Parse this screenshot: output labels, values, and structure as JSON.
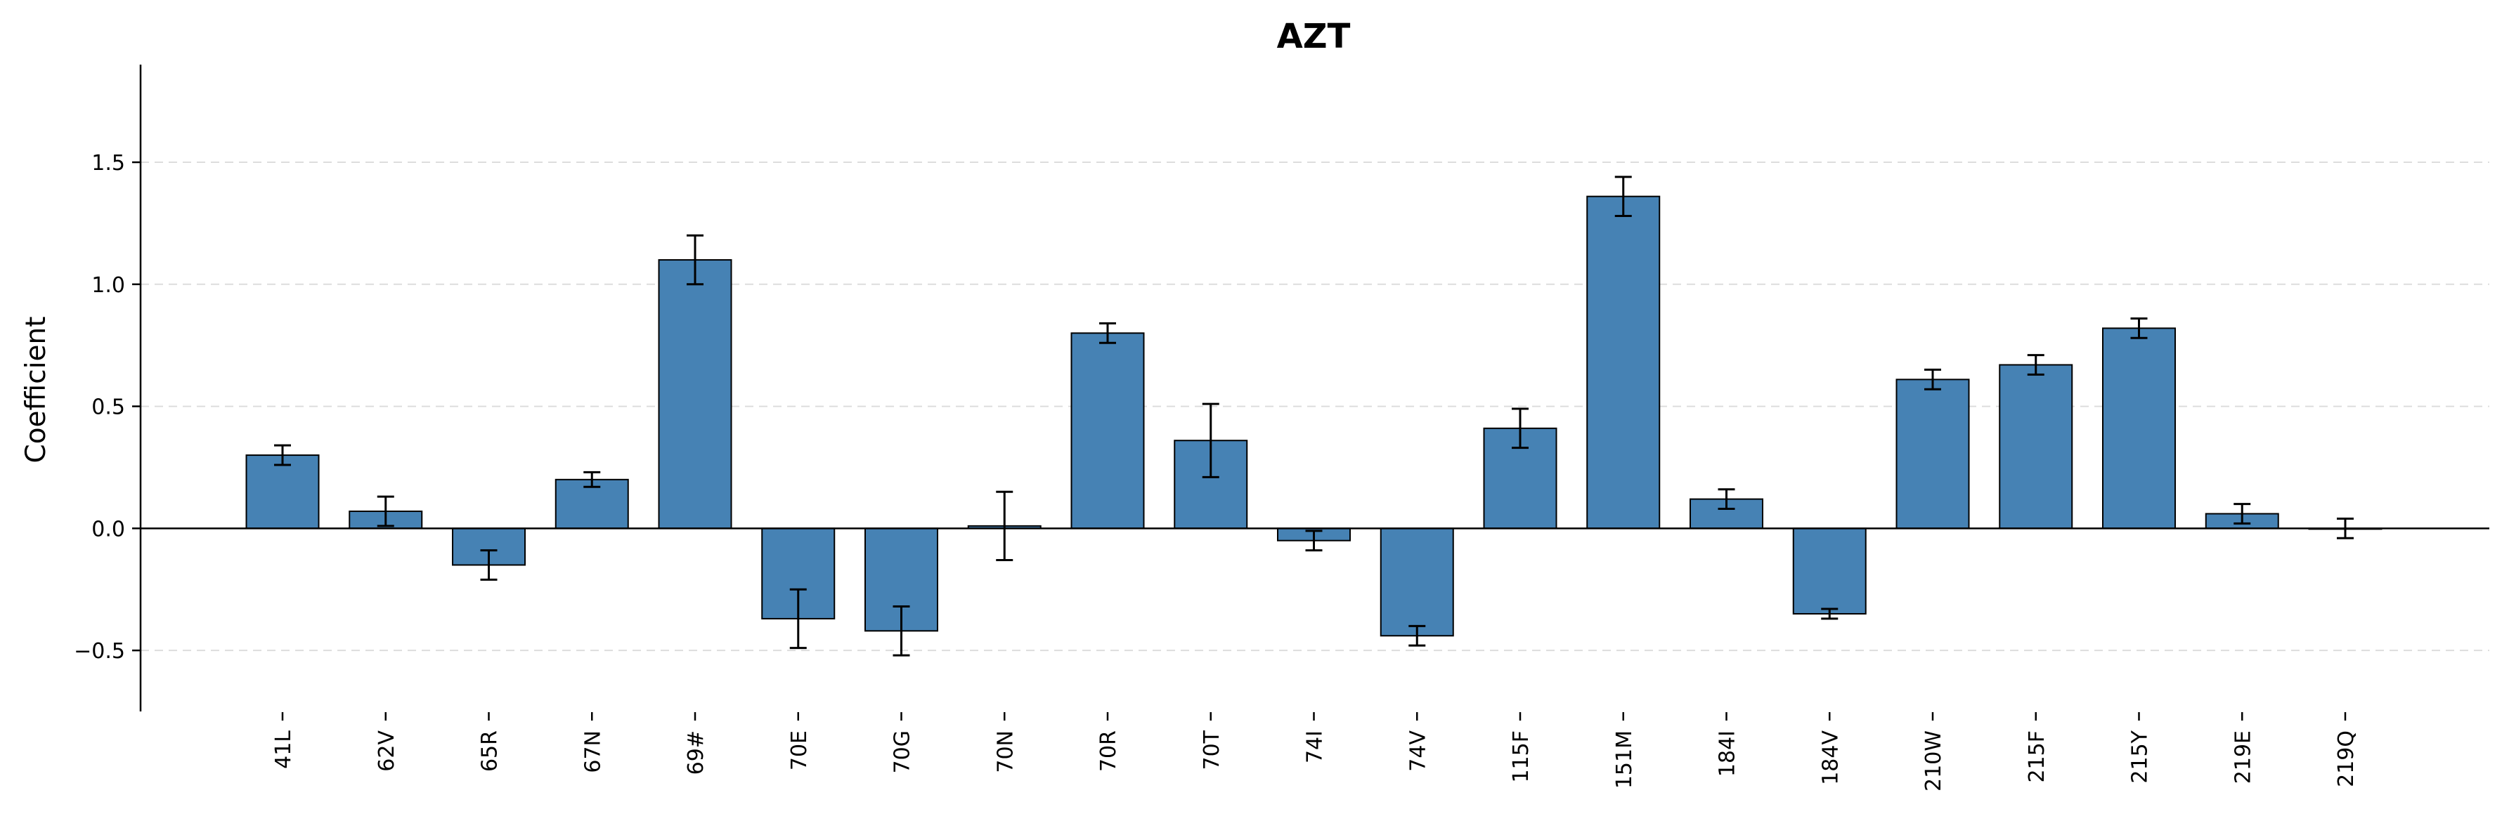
{
  "chart_data": {
    "type": "bar",
    "title": "AZT",
    "xlabel": "",
    "ylabel": "Coefficient",
    "ylim": [
      -0.75,
      1.9
    ],
    "yticks": [
      -0.5,
      0.0,
      0.5,
      1.0,
      1.5
    ],
    "ytick_labels": [
      "−0.5",
      "0.0",
      "0.5",
      "1.0",
      "1.5"
    ],
    "grid": "horizontal dashed",
    "categories": [
      "41L",
      "62V",
      "65R",
      "67N",
      "69#",
      "70E",
      "70G",
      "70N",
      "70R",
      "70T",
      "74I",
      "74V",
      "115F",
      "151M",
      "184I",
      "184V",
      "210W",
      "215F",
      "215Y",
      "219E",
      "219Q"
    ],
    "values": [
      0.3,
      0.07,
      -0.15,
      0.2,
      1.1,
      -0.37,
      -0.42,
      0.01,
      0.8,
      0.36,
      -0.05,
      -0.44,
      0.41,
      1.36,
      0.12,
      -0.35,
      0.61,
      0.67,
      0.82,
      0.06,
      0.0
    ],
    "errors": [
      0.04,
      0.06,
      0.06,
      0.03,
      0.1,
      0.12,
      0.1,
      0.14,
      0.04,
      0.15,
      0.04,
      0.04,
      0.08,
      0.08,
      0.04,
      0.02,
      0.04,
      0.04,
      0.04,
      0.04,
      0.04
    ],
    "colors": {
      "bar_fill": "#4682b4",
      "bar_edge": "#000000",
      "error_bar": "#000000",
      "grid": "#dddddd",
      "axis": "#000000"
    }
  }
}
